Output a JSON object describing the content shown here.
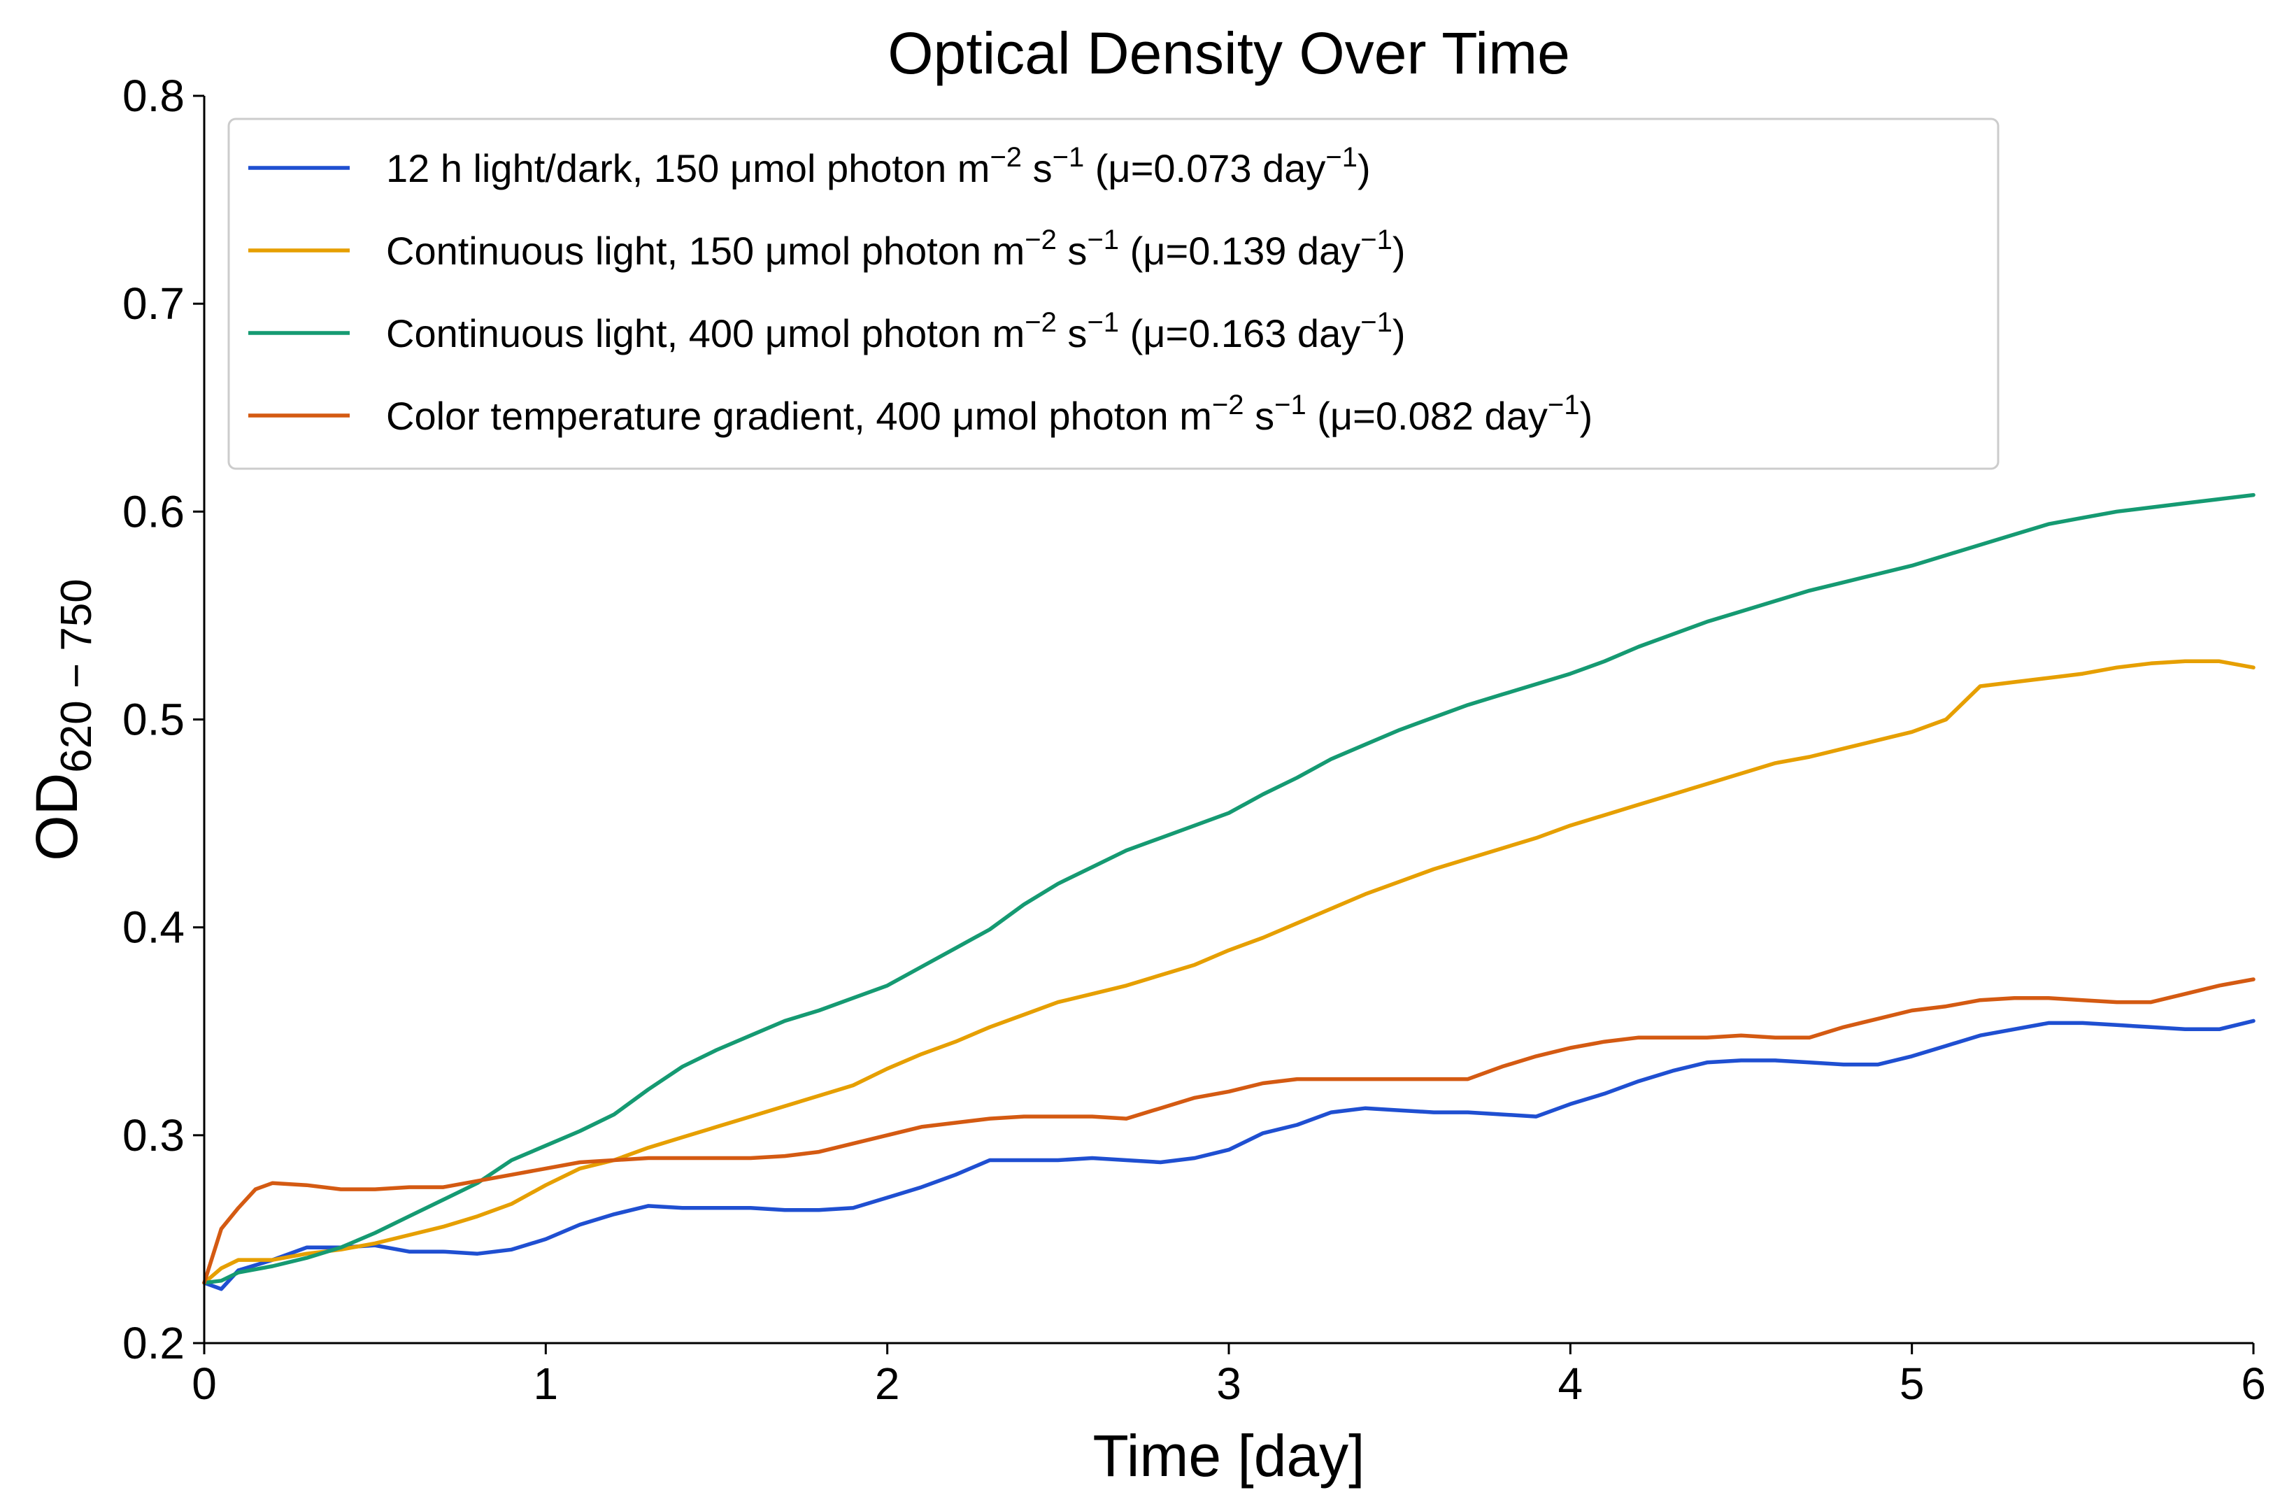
{
  "chart_data": {
    "type": "line",
    "title": "Optical Density Over Time",
    "xlabel": "Time [day]",
    "ylabel": {
      "base": "OD",
      "subscript": "620 − 750"
    },
    "xlim": [
      0,
      6
    ],
    "ylim": [
      0.2,
      0.8
    ],
    "xticks": [
      0,
      1,
      2,
      3,
      4,
      5,
      6
    ],
    "xtick_labels": [
      "0",
      "1",
      "2",
      "3",
      "4",
      "5",
      "6"
    ],
    "yticks": [
      0.2,
      0.3,
      0.4,
      0.5,
      0.6,
      0.7,
      0.8
    ],
    "ytick_labels": [
      "0.2",
      "0.3",
      "0.4",
      "0.5",
      "0.6",
      "0.7",
      "0.8"
    ],
    "grid": false,
    "legend_position": "top-left",
    "series": [
      {
        "name": "12 h light/dark",
        "color": "#1f4fd1",
        "legend": {
          "prefix": "12 h light/dark, 150 μmol photon m",
          "exp1": "−2",
          "mid": " s",
          "exp2": "−1",
          "mu": " (μ=0.073 day",
          "exp3": "−1",
          "end": ")"
        },
        "points": [
          [
            0,
            0.229
          ],
          [
            0.05,
            0.226
          ],
          [
            0.1,
            0.235
          ],
          [
            0.2,
            0.24
          ],
          [
            0.3,
            0.246
          ],
          [
            0.4,
            0.246
          ],
          [
            0.5,
            0.247
          ],
          [
            0.6,
            0.244
          ],
          [
            0.7,
            0.244
          ],
          [
            0.8,
            0.243
          ],
          [
            0.9,
            0.245
          ],
          [
            1.0,
            0.25
          ],
          [
            1.1,
            0.257
          ],
          [
            1.2,
            0.262
          ],
          [
            1.3,
            0.266
          ],
          [
            1.4,
            0.265
          ],
          [
            1.5,
            0.265
          ],
          [
            1.6,
            0.265
          ],
          [
            1.7,
            0.264
          ],
          [
            1.8,
            0.264
          ],
          [
            1.9,
            0.265
          ],
          [
            2.0,
            0.27
          ],
          [
            2.1,
            0.275
          ],
          [
            2.2,
            0.281
          ],
          [
            2.3,
            0.288
          ],
          [
            2.4,
            0.288
          ],
          [
            2.5,
            0.288
          ],
          [
            2.6,
            0.289
          ],
          [
            2.7,
            0.288
          ],
          [
            2.8,
            0.287
          ],
          [
            2.9,
            0.289
          ],
          [
            3.0,
            0.293
          ],
          [
            3.1,
            0.301
          ],
          [
            3.2,
            0.305
          ],
          [
            3.3,
            0.311
          ],
          [
            3.4,
            0.313
          ],
          [
            3.5,
            0.312
          ],
          [
            3.6,
            0.311
          ],
          [
            3.7,
            0.311
          ],
          [
            3.8,
            0.31
          ],
          [
            3.9,
            0.309
          ],
          [
            4.0,
            0.315
          ],
          [
            4.1,
            0.32
          ],
          [
            4.2,
            0.326
          ],
          [
            4.3,
            0.331
          ],
          [
            4.4,
            0.335
          ],
          [
            4.5,
            0.336
          ],
          [
            4.6,
            0.336
          ],
          [
            4.7,
            0.335
          ],
          [
            4.8,
            0.334
          ],
          [
            4.9,
            0.334
          ],
          [
            5.0,
            0.338
          ],
          [
            5.1,
            0.343
          ],
          [
            5.2,
            0.348
          ],
          [
            5.3,
            0.351
          ],
          [
            5.4,
            0.354
          ],
          [
            5.5,
            0.354
          ],
          [
            5.6,
            0.353
          ],
          [
            5.7,
            0.352
          ],
          [
            5.8,
            0.351
          ],
          [
            5.9,
            0.351
          ],
          [
            6.0,
            0.355
          ]
        ]
      },
      {
        "name": "Continuous light 150",
        "color": "#e69f00",
        "legend": {
          "prefix": "Continuous light, 150 μmol photon m",
          "exp1": "−2",
          "mid": " s",
          "exp2": "−1",
          "mu": " (μ=0.139 day",
          "exp3": "−1",
          "end": ")"
        },
        "points": [
          [
            0,
            0.229
          ],
          [
            0.05,
            0.236
          ],
          [
            0.1,
            0.24
          ],
          [
            0.2,
            0.24
          ],
          [
            0.3,
            0.243
          ],
          [
            0.4,
            0.245
          ],
          [
            0.5,
            0.248
          ],
          [
            0.6,
            0.252
          ],
          [
            0.7,
            0.256
          ],
          [
            0.8,
            0.261
          ],
          [
            0.9,
            0.267
          ],
          [
            1.0,
            0.276
          ],
          [
            1.1,
            0.284
          ],
          [
            1.2,
            0.288
          ],
          [
            1.3,
            0.294
          ],
          [
            1.4,
            0.299
          ],
          [
            1.5,
            0.304
          ],
          [
            1.6,
            0.309
          ],
          [
            1.7,
            0.314
          ],
          [
            1.8,
            0.319
          ],
          [
            1.9,
            0.324
          ],
          [
            2.0,
            0.332
          ],
          [
            2.1,
            0.339
          ],
          [
            2.2,
            0.345
          ],
          [
            2.3,
            0.352
          ],
          [
            2.4,
            0.358
          ],
          [
            2.5,
            0.364
          ],
          [
            2.6,
            0.368
          ],
          [
            2.7,
            0.372
          ],
          [
            2.8,
            0.377
          ],
          [
            2.9,
            0.382
          ],
          [
            3.0,
            0.389
          ],
          [
            3.1,
            0.395
          ],
          [
            3.2,
            0.402
          ],
          [
            3.3,
            0.409
          ],
          [
            3.4,
            0.416
          ],
          [
            3.5,
            0.422
          ],
          [
            3.6,
            0.428
          ],
          [
            3.7,
            0.433
          ],
          [
            3.8,
            0.438
          ],
          [
            3.9,
            0.443
          ],
          [
            4.0,
            0.449
          ],
          [
            4.1,
            0.454
          ],
          [
            4.2,
            0.459
          ],
          [
            4.3,
            0.464
          ],
          [
            4.4,
            0.469
          ],
          [
            4.5,
            0.474
          ],
          [
            4.6,
            0.479
          ],
          [
            4.7,
            0.482
          ],
          [
            4.8,
            0.486
          ],
          [
            4.9,
            0.49
          ],
          [
            5.0,
            0.494
          ],
          [
            5.1,
            0.5
          ],
          [
            5.2,
            0.516
          ],
          [
            5.3,
            0.518
          ],
          [
            5.4,
            0.52
          ],
          [
            5.5,
            0.522
          ],
          [
            5.6,
            0.525
          ],
          [
            5.7,
            0.527
          ],
          [
            5.8,
            0.528
          ],
          [
            5.9,
            0.528
          ],
          [
            6.0,
            0.525
          ]
        ]
      },
      {
        "name": "Continuous light 400",
        "color": "#159a72",
        "legend": {
          "prefix": "Continuous light, 400 μmol photon m",
          "exp1": "−2",
          "mid": " s",
          "exp2": "−1",
          "mu": " (μ=0.163 day",
          "exp3": "−1",
          "end": ")"
        },
        "points": [
          [
            0,
            0.229
          ],
          [
            0.05,
            0.23
          ],
          [
            0.1,
            0.234
          ],
          [
            0.2,
            0.237
          ],
          [
            0.3,
            0.241
          ],
          [
            0.4,
            0.246
          ],
          [
            0.5,
            0.253
          ],
          [
            0.6,
            0.261
          ],
          [
            0.7,
            0.269
          ],
          [
            0.8,
            0.277
          ],
          [
            0.9,
            0.288
          ],
          [
            1.0,
            0.295
          ],
          [
            1.1,
            0.302
          ],
          [
            1.2,
            0.31
          ],
          [
            1.3,
            0.322
          ],
          [
            1.4,
            0.333
          ],
          [
            1.5,
            0.341
          ],
          [
            1.6,
            0.348
          ],
          [
            1.7,
            0.355
          ],
          [
            1.8,
            0.36
          ],
          [
            1.9,
            0.366
          ],
          [
            2.0,
            0.372
          ],
          [
            2.1,
            0.381
          ],
          [
            2.2,
            0.39
          ],
          [
            2.3,
            0.399
          ],
          [
            2.4,
            0.411
          ],
          [
            2.5,
            0.421
          ],
          [
            2.6,
            0.429
          ],
          [
            2.7,
            0.437
          ],
          [
            2.8,
            0.443
          ],
          [
            2.9,
            0.449
          ],
          [
            3.0,
            0.455
          ],
          [
            3.1,
            0.464
          ],
          [
            3.2,
            0.472
          ],
          [
            3.3,
            0.481
          ],
          [
            3.4,
            0.488
          ],
          [
            3.5,
            0.495
          ],
          [
            3.6,
            0.501
          ],
          [
            3.7,
            0.507
          ],
          [
            3.8,
            0.512
          ],
          [
            3.9,
            0.517
          ],
          [
            4.0,
            0.522
          ],
          [
            4.1,
            0.528
          ],
          [
            4.2,
            0.535
          ],
          [
            4.3,
            0.541
          ],
          [
            4.4,
            0.547
          ],
          [
            4.5,
            0.552
          ],
          [
            4.6,
            0.557
          ],
          [
            4.7,
            0.562
          ],
          [
            4.8,
            0.566
          ],
          [
            4.9,
            0.57
          ],
          [
            5.0,
            0.574
          ],
          [
            5.1,
            0.579
          ],
          [
            5.2,
            0.584
          ],
          [
            5.3,
            0.589
          ],
          [
            5.4,
            0.594
          ],
          [
            5.5,
            0.597
          ],
          [
            5.6,
            0.6
          ],
          [
            5.7,
            0.602
          ],
          [
            5.8,
            0.604
          ],
          [
            5.9,
            0.606
          ],
          [
            6.0,
            0.608
          ]
        ]
      },
      {
        "name": "Color temperature gradient",
        "color": "#d45a12",
        "legend": {
          "prefix": "Color temperature gradient, 400 μmol photon m",
          "exp1": "−2",
          "mid": " s",
          "exp2": "−1",
          "mu": " (μ=0.082 day",
          "exp3": "−1",
          "end": ")"
        },
        "points": [
          [
            0,
            0.229
          ],
          [
            0.05,
            0.255
          ],
          [
            0.1,
            0.265
          ],
          [
            0.15,
            0.274
          ],
          [
            0.2,
            0.277
          ],
          [
            0.3,
            0.276
          ],
          [
            0.4,
            0.274
          ],
          [
            0.5,
            0.274
          ],
          [
            0.6,
            0.275
          ],
          [
            0.7,
            0.275
          ],
          [
            0.8,
            0.278
          ],
          [
            0.9,
            0.281
          ],
          [
            1.0,
            0.284
          ],
          [
            1.1,
            0.287
          ],
          [
            1.2,
            0.288
          ],
          [
            1.3,
            0.289
          ],
          [
            1.4,
            0.289
          ],
          [
            1.5,
            0.289
          ],
          [
            1.6,
            0.289
          ],
          [
            1.7,
            0.29
          ],
          [
            1.8,
            0.292
          ],
          [
            1.9,
            0.296
          ],
          [
            2.0,
            0.3
          ],
          [
            2.1,
            0.304
          ],
          [
            2.2,
            0.306
          ],
          [
            2.3,
            0.308
          ],
          [
            2.4,
            0.309
          ],
          [
            2.5,
            0.309
          ],
          [
            2.6,
            0.309
          ],
          [
            2.7,
            0.308
          ],
          [
            2.8,
            0.313
          ],
          [
            2.9,
            0.318
          ],
          [
            3.0,
            0.321
          ],
          [
            3.1,
            0.325
          ],
          [
            3.2,
            0.327
          ],
          [
            3.3,
            0.327
          ],
          [
            3.4,
            0.327
          ],
          [
            3.5,
            0.327
          ],
          [
            3.6,
            0.327
          ],
          [
            3.7,
            0.327
          ],
          [
            3.8,
            0.333
          ],
          [
            3.9,
            0.338
          ],
          [
            4.0,
            0.342
          ],
          [
            4.1,
            0.345
          ],
          [
            4.2,
            0.347
          ],
          [
            4.3,
            0.347
          ],
          [
            4.4,
            0.347
          ],
          [
            4.5,
            0.348
          ],
          [
            4.6,
            0.347
          ],
          [
            4.7,
            0.347
          ],
          [
            4.8,
            0.352
          ],
          [
            4.9,
            0.356
          ],
          [
            5.0,
            0.36
          ],
          [
            5.1,
            0.362
          ],
          [
            5.2,
            0.365
          ],
          [
            5.3,
            0.366
          ],
          [
            5.4,
            0.366
          ],
          [
            5.5,
            0.365
          ],
          [
            5.6,
            0.364
          ],
          [
            5.7,
            0.364
          ],
          [
            5.8,
            0.368
          ],
          [
            5.9,
            0.372
          ],
          [
            6.0,
            0.375
          ]
        ]
      }
    ]
  }
}
